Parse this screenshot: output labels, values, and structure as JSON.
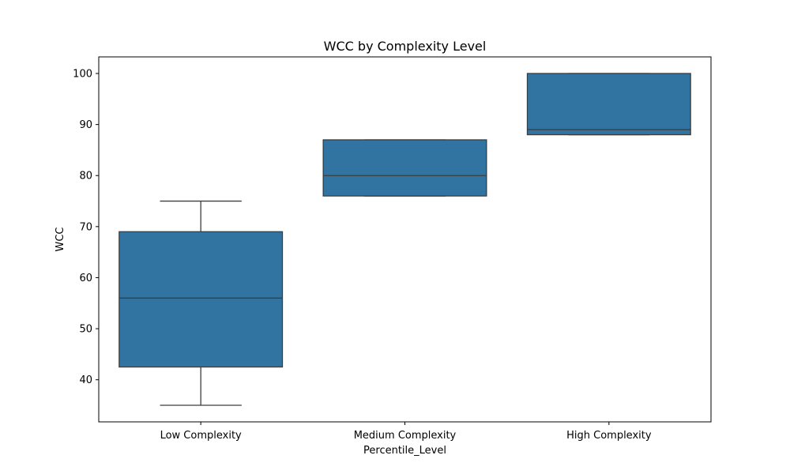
{
  "chart_data": {
    "type": "box",
    "title": "WCC by Complexity Level",
    "xlabel": "Percentile_Level",
    "ylabel": "WCC",
    "categories": [
      "Low Complexity",
      "Medium Complexity",
      "High Complexity"
    ],
    "boxes": [
      {
        "category": "Low Complexity",
        "whisker_low": 35,
        "q1": 42.5,
        "median": 56,
        "q3": 69,
        "whisker_high": 75
      },
      {
        "category": "Medium Complexity",
        "whisker_low": 76,
        "q1": 76,
        "median": 80,
        "q3": 87,
        "whisker_high": 87
      },
      {
        "category": "High Complexity",
        "whisker_low": 88,
        "q1": 88,
        "median": 89,
        "q3": 100,
        "whisker_high": 100
      }
    ],
    "ylim": [
      31.75,
      103.25
    ],
    "yticks": [
      40,
      50,
      60,
      70,
      80,
      90,
      100
    ],
    "grid": false,
    "colors": {
      "box_fill": "#3274a1",
      "line": "#3d3d3d",
      "axis": "#000000"
    }
  }
}
